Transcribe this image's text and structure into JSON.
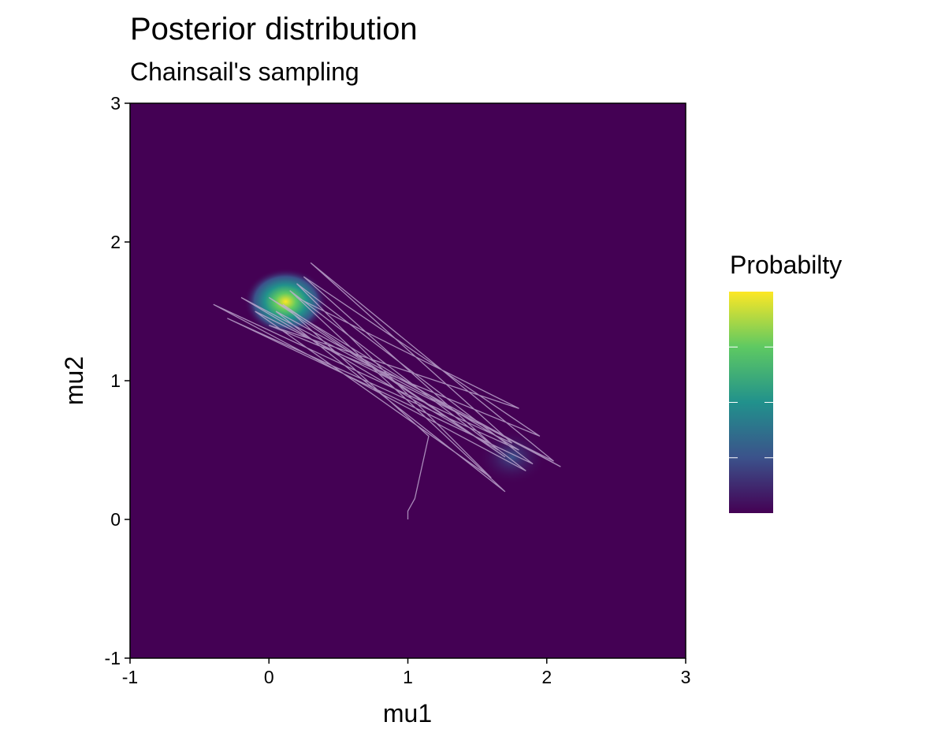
{
  "chart_data": {
    "type": "density_trace",
    "title": "Posterior distribution",
    "subtitle": "Chainsail's sampling",
    "x_label": "mu1",
    "y_label": "mu2",
    "legend_title": "Probabilty",
    "xlim": [
      -1,
      3
    ],
    "xticks": [
      -1,
      0,
      1,
      2,
      3
    ],
    "ylim": [
      -1,
      3
    ],
    "yticks": [
      -1,
      0,
      1,
      2,
      3
    ],
    "background": "#440154",
    "colorscale": [
      "#440154",
      "#3b528b",
      "#21918c",
      "#5ec962",
      "#fde725"
    ],
    "clusters": [
      {
        "x": 0.12,
        "y": 1.57,
        "spread": 0.3,
        "level": 1.0
      },
      {
        "x": 1.75,
        "y": 0.45,
        "spread": 0.25,
        "level": 0.3
      }
    ],
    "trace": {
      "color": "#c3aed3",
      "x": [
        1.0,
        1.0,
        1.05,
        1.15,
        0.1,
        1.7,
        0.0,
        1.8,
        -0.3,
        1.9,
        0.2,
        1.6,
        -0.1,
        2.05,
        0.3,
        1.75,
        -0.4,
        1.85,
        0.15,
        1.7,
        0.05,
        2.1,
        -0.2,
        1.65,
        0.25,
        1.95,
        0.0,
        1.8,
        0.2
      ],
      "y": [
        0.0,
        0.06,
        0.15,
        0.6,
        1.55,
        0.45,
        1.6,
        0.5,
        1.45,
        0.4,
        1.7,
        0.3,
        1.5,
        0.42,
        1.85,
        0.55,
        1.55,
        0.35,
        1.65,
        0.2,
        1.5,
        0.38,
        1.6,
        0.5,
        1.75,
        0.6,
        1.4,
        0.8,
        1.6
      ]
    }
  }
}
